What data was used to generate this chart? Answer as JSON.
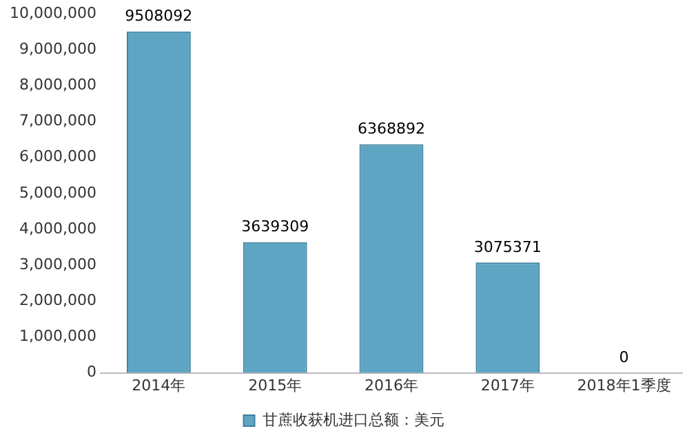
{
  "chart_data": {
    "type": "bar",
    "categories": [
      "2014年",
      "2015年",
      "2016年",
      "2017年",
      "2018年1季度"
    ],
    "series": [
      {
        "name": "甘蔗收获机进口总额：美元",
        "color": "#5ea5c4",
        "values": [
          9508092,
          3639309,
          6368892,
          3075371,
          0
        ]
      }
    ],
    "ylim": [
      0,
      10000000
    ],
    "yticks": [
      0,
      {
        "value": 1000000,
        "label": "1,000,000"
      },
      {
        "value": 2000000,
        "label": "2,000,000"
      },
      {
        "value": 3000000,
        "label": "3,000,000"
      },
      {
        "value": 4000000,
        "label": "4,000,000"
      },
      {
        "value": 5000000,
        "label": "5,000,000"
      },
      {
        "value": 6000000,
        "label": "6,000,000"
      },
      {
        "value": 7000000,
        "label": "7,000,000"
      },
      {
        "value": 8000000,
        "label": "8,000,000"
      },
      {
        "value": 9000000,
        "label": "9,000,000"
      },
      {
        "value": 10000000,
        "label": "10,000,000"
      }
    ],
    "grid": false,
    "legend": "bottom",
    "data_labels": true
  }
}
